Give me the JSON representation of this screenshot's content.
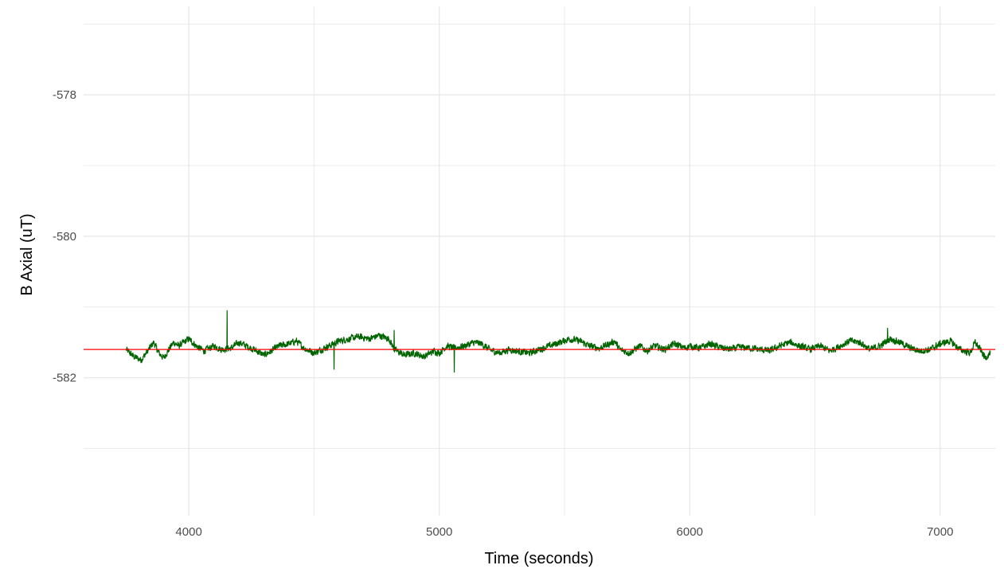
{
  "chart_data": {
    "type": "line",
    "title": "",
    "xlabel": "Time (seconds)",
    "ylabel": "B Axial (uT)",
    "xlim": [
      3580,
      7220
    ],
    "ylim": [
      -583.95,
      -576.75
    ],
    "x_ticks": [
      4000,
      5000,
      6000,
      7000
    ],
    "x_tick_labels": [
      "4000",
      "5000",
      "6000",
      "7000"
    ],
    "x_minor_ticks": [
      3500,
      4500,
      5500,
      6500,
      7500
    ],
    "y_ticks": [
      -578,
      -580,
      -582
    ],
    "y_tick_labels": [
      "-578",
      "-580",
      "-582"
    ],
    "y_minor_ticks": [
      -577,
      -579,
      -581,
      -583
    ],
    "grid": true,
    "legend": "none",
    "series": [
      {
        "color": "#006400",
        "x_start": 3750,
        "x_end": 7200,
        "x_step": 1,
        "keyframes": [
          [
            3750,
            -581.6
          ],
          [
            3780,
            -581.7
          ],
          [
            3810,
            -581.75
          ],
          [
            3840,
            -581.6
          ],
          [
            3860,
            -581.5
          ],
          [
            3880,
            -581.65
          ],
          [
            3900,
            -581.72
          ],
          [
            3920,
            -581.6
          ],
          [
            3940,
            -581.5
          ],
          [
            3960,
            -581.55
          ],
          [
            3980,
            -581.5
          ],
          [
            4000,
            -581.45
          ],
          [
            4030,
            -581.55
          ],
          [
            4060,
            -581.62
          ],
          [
            4100,
            -581.55
          ],
          [
            4130,
            -581.6
          ],
          [
            4170,
            -581.58
          ],
          [
            4200,
            -581.5
          ],
          [
            4230,
            -581.55
          ],
          [
            4260,
            -581.6
          ],
          [
            4300,
            -581.68
          ],
          [
            4330,
            -581.62
          ],
          [
            4360,
            -581.55
          ],
          [
            4400,
            -581.52
          ],
          [
            4430,
            -581.48
          ],
          [
            4460,
            -581.58
          ],
          [
            4500,
            -581.65
          ],
          [
            4530,
            -581.6
          ],
          [
            4560,
            -581.55
          ],
          [
            4600,
            -581.48
          ],
          [
            4640,
            -581.45
          ],
          [
            4680,
            -581.42
          ],
          [
            4720,
            -581.45
          ],
          [
            4760,
            -581.4
          ],
          [
            4800,
            -581.45
          ],
          [
            4820,
            -581.6
          ],
          [
            4860,
            -581.68
          ],
          [
            4900,
            -581.65
          ],
          [
            4940,
            -581.7
          ],
          [
            4980,
            -581.62
          ],
          [
            5000,
            -581.65
          ],
          [
            5030,
            -581.55
          ],
          [
            5060,
            -581.58
          ],
          [
            5100,
            -581.55
          ],
          [
            5140,
            -581.5
          ],
          [
            5170,
            -581.52
          ],
          [
            5200,
            -581.6
          ],
          [
            5240,
            -581.65
          ],
          [
            5280,
            -581.6
          ],
          [
            5320,
            -581.63
          ],
          [
            5360,
            -581.65
          ],
          [
            5400,
            -581.6
          ],
          [
            5440,
            -581.55
          ],
          [
            5480,
            -581.5
          ],
          [
            5520,
            -581.45
          ],
          [
            5560,
            -581.48
          ],
          [
            5600,
            -581.55
          ],
          [
            5640,
            -581.58
          ],
          [
            5680,
            -581.52
          ],
          [
            5700,
            -581.48
          ],
          [
            5720,
            -581.6
          ],
          [
            5760,
            -581.65
          ],
          [
            5800,
            -581.55
          ],
          [
            5830,
            -581.62
          ],
          [
            5860,
            -581.55
          ],
          [
            5900,
            -581.6
          ],
          [
            5940,
            -581.52
          ],
          [
            5980,
            -581.58
          ],
          [
            6000,
            -581.55
          ],
          [
            6040,
            -581.58
          ],
          [
            6080,
            -581.52
          ],
          [
            6120,
            -581.57
          ],
          [
            6160,
            -581.6
          ],
          [
            6200,
            -581.57
          ],
          [
            6240,
            -581.58
          ],
          [
            6280,
            -581.6
          ],
          [
            6320,
            -581.62
          ],
          [
            6360,
            -581.55
          ],
          [
            6400,
            -581.5
          ],
          [
            6440,
            -581.55
          ],
          [
            6480,
            -581.6
          ],
          [
            6520,
            -581.55
          ],
          [
            6560,
            -581.62
          ],
          [
            6600,
            -581.55
          ],
          [
            6640,
            -581.48
          ],
          [
            6680,
            -581.5
          ],
          [
            6720,
            -581.6
          ],
          [
            6760,
            -581.55
          ],
          [
            6800,
            -581.45
          ],
          [
            6840,
            -581.5
          ],
          [
            6880,
            -581.58
          ],
          [
            6920,
            -581.62
          ],
          [
            6960,
            -581.6
          ],
          [
            7000,
            -581.52
          ],
          [
            7040,
            -581.48
          ],
          [
            7080,
            -581.6
          ],
          [
            7120,
            -581.65
          ],
          [
            7140,
            -581.5
          ],
          [
            7160,
            -581.6
          ],
          [
            7180,
            -581.72
          ],
          [
            7200,
            -581.65
          ]
        ],
        "noise": 0.055,
        "spikes": [
          [
            4153,
            -581.05
          ],
          [
            4820,
            -581.33
          ],
          [
            5060,
            -581.92
          ],
          [
            4580,
            -581.88
          ],
          [
            6790,
            -581.3
          ]
        ]
      }
    ],
    "hlines": [
      {
        "y": -581.6,
        "color": "#ff0000"
      }
    ]
  }
}
